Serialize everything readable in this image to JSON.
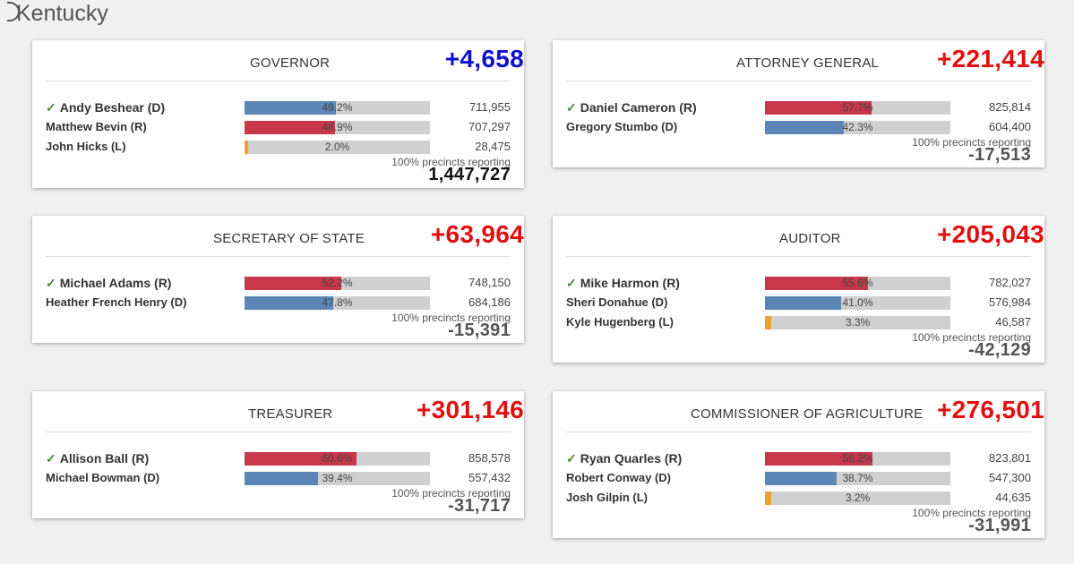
{
  "page_title": "Kentucky",
  "colors": {
    "rep": "#c8374a",
    "dem": "#5b86b6",
    "lib": "#f0a030",
    "margin_dem": "#1010cc",
    "margin_rep": "#e01010"
  },
  "precincts_text": "100% precincts reporting",
  "races": [
    {
      "id": "governor",
      "title": "GOVERNOR",
      "margin": "+4,658",
      "margin_party": "dem",
      "footer": "1,447,727",
      "candidates": [
        {
          "name": "Andy Beshear (D)",
          "winner": true,
          "party": "dem",
          "pct": 49.2,
          "pct_label": "49.2%",
          "votes": "711,955"
        },
        {
          "name": "Matthew Bevin (R)",
          "winner": false,
          "party": "rep",
          "pct": 48.9,
          "pct_label": "48.9%",
          "votes": "707,297"
        },
        {
          "name": "John Hicks (L)",
          "winner": false,
          "party": "lib",
          "pct": 2.0,
          "pct_label": "2.0%",
          "votes": "28,475"
        }
      ]
    },
    {
      "id": "attorney-general",
      "title": "ATTORNEY GENERAL",
      "margin": "+221,414",
      "margin_party": "rep",
      "footer": "-17,513",
      "candidates": [
        {
          "name": "Daniel Cameron (R)",
          "winner": true,
          "party": "rep",
          "pct": 57.7,
          "pct_label": "57.7%",
          "votes": "825,814"
        },
        {
          "name": "Gregory Stumbo (D)",
          "winner": false,
          "party": "dem",
          "pct": 42.3,
          "pct_label": "42.3%",
          "votes": "604,400"
        }
      ]
    },
    {
      "id": "secretary-of-state",
      "title": "SECRETARY OF STATE",
      "margin": "+63,964",
      "margin_party": "rep",
      "footer": "-15,391",
      "candidates": [
        {
          "name": "Michael Adams (R)",
          "winner": true,
          "party": "rep",
          "pct": 52.2,
          "pct_label": "52.2%",
          "votes": "748,150"
        },
        {
          "name": "Heather French Henry (D)",
          "winner": false,
          "party": "dem",
          "pct": 47.8,
          "pct_label": "47.8%",
          "votes": "684,186"
        }
      ]
    },
    {
      "id": "auditor",
      "title": "AUDITOR",
      "margin": "+205,043",
      "margin_party": "rep",
      "footer": "-42,129",
      "candidates": [
        {
          "name": "Mike Harmon (R)",
          "winner": true,
          "party": "rep",
          "pct": 55.6,
          "pct_label": "55.6%",
          "votes": "782,027"
        },
        {
          "name": "Sheri Donahue (D)",
          "winner": false,
          "party": "dem",
          "pct": 41.0,
          "pct_label": "41.0%",
          "votes": "576,984"
        },
        {
          "name": "Kyle Hugenberg (L)",
          "winner": false,
          "party": "lib",
          "pct": 3.3,
          "pct_label": "3.3%",
          "votes": "46,587"
        }
      ]
    },
    {
      "id": "treasurer",
      "title": "TREASURER",
      "margin": "+301,146",
      "margin_party": "rep",
      "footer": "-31,717",
      "candidates": [
        {
          "name": "Allison Ball (R)",
          "winner": true,
          "party": "rep",
          "pct": 60.6,
          "pct_label": "60.6%",
          "votes": "858,578"
        },
        {
          "name": "Michael Bowman (D)",
          "winner": false,
          "party": "dem",
          "pct": 39.4,
          "pct_label": "39.4%",
          "votes": "557,432"
        }
      ]
    },
    {
      "id": "commissioner-of-agriculture",
      "title": "COMMISSIONER OF AGRICULTURE",
      "margin": "+276,501",
      "margin_party": "rep",
      "footer": "-31,991",
      "candidates": [
        {
          "name": "Ryan Quarles (R)",
          "winner": true,
          "party": "rep",
          "pct": 58.2,
          "pct_label": "58.2%",
          "votes": "823,801"
        },
        {
          "name": "Robert Conway (D)",
          "winner": false,
          "party": "dem",
          "pct": 38.7,
          "pct_label": "38.7%",
          "votes": "547,300"
        },
        {
          "name": "Josh Gilpin (L)",
          "winner": false,
          "party": "lib",
          "pct": 3.2,
          "pct_label": "3.2%",
          "votes": "44,635"
        }
      ]
    }
  ]
}
